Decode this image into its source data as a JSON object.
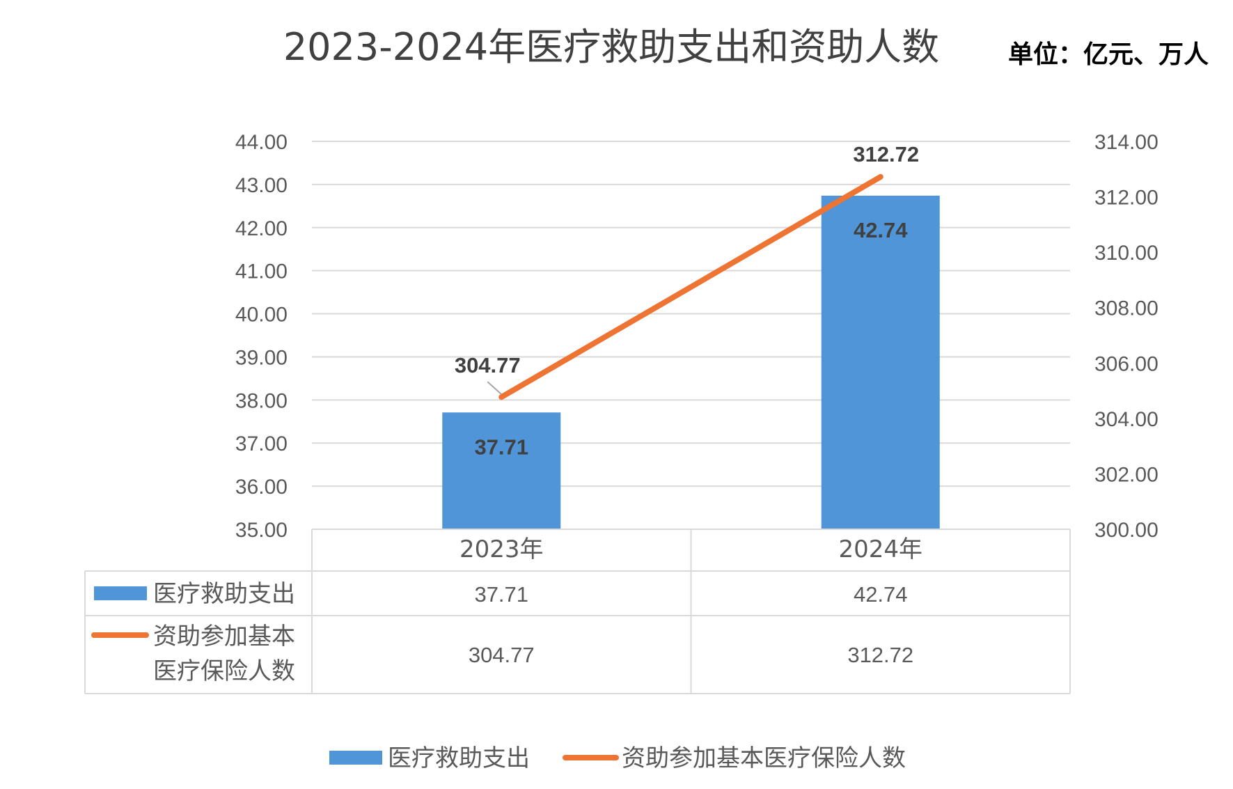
{
  "header": {
    "title": "2023-2024年医疗救助支出和资助人数",
    "unit": "单位：亿元、万人"
  },
  "colors": {
    "bar": "#4f95d8",
    "line": "#ed7433",
    "grid": "#d9d9d9",
    "text": "#595959"
  },
  "chart_data": {
    "type": "bar",
    "categories": [
      "2023年",
      "2024年"
    ],
    "series": [
      {
        "name": "医疗救助支出",
        "type": "bar",
        "axis": "left",
        "values": [
          37.71,
          42.74
        ],
        "labels": [
          "37.71",
          "42.74"
        ]
      },
      {
        "name": "资助参加基本医疗保险人数",
        "type": "line",
        "axis": "right",
        "values": [
          304.77,
          312.72
        ],
        "labels": [
          "304.77",
          "312.72"
        ]
      }
    ],
    "y_left": {
      "min": 35,
      "max": 44,
      "step": 1,
      "ticks": [
        "35.00",
        "36.00",
        "37.00",
        "38.00",
        "39.00",
        "40.00",
        "41.00",
        "42.00",
        "43.00",
        "44.00"
      ]
    },
    "y_right": {
      "min": 300,
      "max": 314,
      "step": 2,
      "ticks": [
        "300.00",
        "302.00",
        "304.00",
        "306.00",
        "308.00",
        "310.00",
        "312.00",
        "314.00"
      ]
    },
    "data_table": {
      "rows": [
        {
          "legend": "医疗救助支出",
          "lines": [
            "医疗救助支出"
          ],
          "cells": [
            "37.71",
            "42.74"
          ]
        },
        {
          "legend": "资助参加基本医疗保险人数",
          "lines": [
            "资助参加基本",
            "医疗保险人数"
          ],
          "cells": [
            "304.77",
            "312.72"
          ]
        }
      ]
    },
    "legend": [
      "医疗救助支出",
      "资助参加基本医疗保险人数"
    ],
    "legend_position": "bottom",
    "grid": true
  }
}
